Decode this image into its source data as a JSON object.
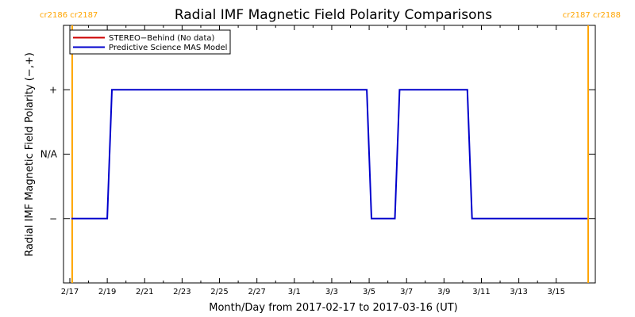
{
  "colors": {
    "background": "#ffffff",
    "axes": "#000000",
    "rotation_marker": "#ffa500",
    "stereo": "#cc0000",
    "mas": "#0000cc"
  },
  "rotation_labels": {
    "left": "cr2186 cr2187",
    "right": "cr2187 cr2188"
  },
  "chart_data": {
    "type": "line",
    "title": "Radial IMF Magnetic Field Polarity Comparisons",
    "xlabel": "Month/Day from 2017-02-17 to 2017-03-16 (UT)",
    "ylabel": "Radial IMF Magnetic Field Polarity (−,+)",
    "x_range": [
      "2017-02-17",
      "2017-03-16"
    ],
    "x_ticks": [
      {
        "date": "2017-02-17",
        "label": "2/17"
      },
      {
        "date": "2017-02-19",
        "label": "2/19"
      },
      {
        "date": "2017-02-21",
        "label": "2/21"
      },
      {
        "date": "2017-02-23",
        "label": "2/23"
      },
      {
        "date": "2017-02-25",
        "label": "2/25"
      },
      {
        "date": "2017-02-27",
        "label": "2/27"
      },
      {
        "date": "2017-03-01",
        "label": "3/1"
      },
      {
        "date": "2017-03-03",
        "label": "3/3"
      },
      {
        "date": "2017-03-05",
        "label": "3/5"
      },
      {
        "date": "2017-03-07",
        "label": "3/7"
      },
      {
        "date": "2017-03-09",
        "label": "3/9"
      },
      {
        "date": "2017-03-11",
        "label": "3/11"
      },
      {
        "date": "2017-03-13",
        "label": "3/13"
      },
      {
        "date": "2017-03-15",
        "label": "3/15"
      }
    ],
    "y_range": [
      -2,
      2
    ],
    "y_ticks": [
      {
        "value": 1,
        "label": "+"
      },
      {
        "value": 0,
        "label": "N/A"
      },
      {
        "value": -1,
        "label": "−"
      }
    ],
    "rotation_markers": [
      "2017-02-17T03:00",
      "2017-03-16T17:00"
    ],
    "legend_position": "top-left",
    "series": [
      {
        "name": "STEREO−Behind (No data)",
        "color": "#cc0000",
        "points": []
      },
      {
        "name": "Predictive Science MAS Model",
        "color": "#0000cc",
        "points": [
          {
            "x": "2017-02-17T02:00",
            "y": -1
          },
          {
            "x": "2017-02-19T00:00",
            "y": -1
          },
          {
            "x": "2017-02-19T06:00",
            "y": 1
          },
          {
            "x": "2017-03-04T21:00",
            "y": 1
          },
          {
            "x": "2017-03-05T03:00",
            "y": -1
          },
          {
            "x": "2017-03-06T09:00",
            "y": -1
          },
          {
            "x": "2017-03-06T15:00",
            "y": 1
          },
          {
            "x": "2017-03-10T06:00",
            "y": 1
          },
          {
            "x": "2017-03-10T12:00",
            "y": -1
          },
          {
            "x": "2017-03-16T16:00",
            "y": -1
          }
        ]
      }
    ]
  }
}
